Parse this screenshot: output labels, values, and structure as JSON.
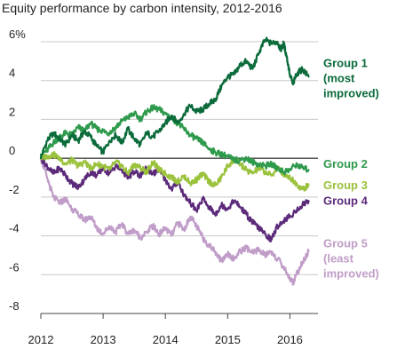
{
  "chart_data": {
    "type": "line",
    "title": "Equity performance by carbon intensity, 2012-2016",
    "xlabel": "",
    "ylabel": "",
    "x_ticks": [
      "2012",
      "2013",
      "2014",
      "2015",
      "2016"
    ],
    "y_ticks": [
      "6%",
      "4",
      "2",
      "0",
      "-2",
      "-4",
      "-6",
      "-8"
    ],
    "xlim": [
      2012,
      2016.45
    ],
    "ylim": [
      -8,
      6
    ],
    "grid": "horizontal",
    "zero_line": true,
    "legend": "inline labels at right end of each series",
    "series": [
      {
        "name": "Group 1 (most improved)",
        "label_lines": [
          "Group 1",
          "(most",
          "improved)"
        ],
        "color": "#0b6b3a",
        "x": [
          2012.0,
          2012.1,
          2012.2,
          2012.3,
          2012.4,
          2012.5,
          2012.6,
          2012.7,
          2012.8,
          2012.9,
          2013.0,
          2013.1,
          2013.2,
          2013.3,
          2013.4,
          2013.5,
          2013.6,
          2013.7,
          2013.8,
          2013.9,
          2014.0,
          2014.1,
          2014.2,
          2014.3,
          2014.4,
          2014.5,
          2014.6,
          2014.7,
          2014.8,
          2014.9,
          2015.0,
          2015.1,
          2015.2,
          2015.3,
          2015.4,
          2015.5,
          2015.6,
          2015.7,
          2015.8,
          2015.85,
          2015.9,
          2015.95,
          2016.0,
          2016.05,
          2016.1,
          2016.2,
          2016.3
        ],
        "y": [
          0.0,
          0.9,
          1.3,
          1.0,
          0.7,
          1.2,
          0.9,
          1.4,
          1.1,
          0.6,
          0.3,
          0.9,
          1.2,
          0.8,
          1.5,
          1.0,
          0.7,
          1.3,
          1.1,
          1.4,
          1.8,
          2.2,
          1.8,
          2.3,
          2.7,
          2.4,
          2.5,
          2.8,
          3.0,
          3.7,
          4.2,
          4.3,
          4.8,
          5.0,
          4.6,
          5.4,
          6.1,
          5.9,
          6.0,
          5.6,
          5.9,
          5.2,
          4.3,
          3.8,
          4.3,
          4.6,
          4.2
        ]
      },
      {
        "name": "Group 2",
        "label_lines": [
          "Group 2"
        ],
        "color": "#2e9a4c",
        "x": [
          2012.0,
          2012.1,
          2012.2,
          2012.3,
          2012.4,
          2012.5,
          2012.6,
          2012.7,
          2012.8,
          2012.9,
          2013.0,
          2013.1,
          2013.2,
          2013.3,
          2013.4,
          2013.5,
          2013.6,
          2013.7,
          2013.8,
          2013.9,
          2014.0,
          2014.1,
          2014.2,
          2014.3,
          2014.4,
          2014.5,
          2014.6,
          2014.7,
          2014.8,
          2014.9,
          2015.0,
          2015.1,
          2015.2,
          2015.3,
          2015.4,
          2015.5,
          2015.6,
          2015.7,
          2015.8,
          2015.9,
          2016.0,
          2016.1,
          2016.2,
          2016.3
        ],
        "y": [
          0.2,
          0.4,
          0.8,
          1.1,
          1.3,
          1.2,
          1.6,
          1.4,
          1.8,
          1.5,
          1.4,
          1.3,
          1.6,
          1.9,
          2.1,
          2.3,
          2.0,
          2.4,
          2.6,
          2.5,
          2.3,
          2.1,
          1.8,
          1.5,
          1.2,
          1.0,
          0.8,
          0.5,
          0.3,
          0.2,
          0.1,
          -0.1,
          -0.1,
          0.0,
          -0.2,
          -0.3,
          -0.4,
          -0.3,
          -0.5,
          -0.7,
          -0.6,
          -0.3,
          -0.5,
          -0.6
        ]
      },
      {
        "name": "Group 3",
        "label_lines": [
          "Group 3"
        ],
        "color": "#9bc23c",
        "x": [
          2012.0,
          2012.1,
          2012.2,
          2012.3,
          2012.4,
          2012.5,
          2012.6,
          2012.7,
          2012.8,
          2012.9,
          2013.0,
          2013.1,
          2013.2,
          2013.3,
          2013.4,
          2013.5,
          2013.6,
          2013.7,
          2013.8,
          2013.9,
          2014.0,
          2014.1,
          2014.2,
          2014.3,
          2014.4,
          2014.5,
          2014.6,
          2014.7,
          2014.8,
          2014.9,
          2015.0,
          2015.1,
          2015.2,
          2015.3,
          2015.4,
          2015.5,
          2015.6,
          2015.7,
          2015.8,
          2015.9,
          2016.0,
          2016.1,
          2016.2,
          2016.3
        ],
        "y": [
          0.0,
          0.1,
          0.2,
          0.0,
          -0.3,
          -0.1,
          -0.4,
          -0.2,
          -0.5,
          -0.3,
          -0.4,
          -0.6,
          -0.2,
          -0.4,
          -0.8,
          -0.3,
          -0.5,
          -0.7,
          -0.2,
          -0.6,
          -0.8,
          -1.0,
          -1.2,
          -0.9,
          -1.3,
          -1.1,
          -0.8,
          -1.2,
          -1.4,
          -1.0,
          -0.4,
          -0.1,
          -0.3,
          -0.6,
          -0.8,
          -0.5,
          -0.7,
          -0.9,
          -0.5,
          -0.8,
          -1.0,
          -1.3,
          -1.6,
          -1.4
        ]
      },
      {
        "name": "Group 4",
        "label_lines": [
          "Group 4"
        ],
        "color": "#5c2a7a",
        "x": [
          2012.0,
          2012.1,
          2012.2,
          2012.3,
          2012.4,
          2012.5,
          2012.6,
          2012.7,
          2012.8,
          2012.9,
          2013.0,
          2013.1,
          2013.2,
          2013.3,
          2013.4,
          2013.5,
          2013.6,
          2013.7,
          2013.8,
          2013.9,
          2014.0,
          2014.1,
          2014.2,
          2014.3,
          2014.4,
          2014.5,
          2014.6,
          2014.7,
          2014.8,
          2014.9,
          2015.0,
          2015.1,
          2015.2,
          2015.3,
          2015.4,
          2015.5,
          2015.6,
          2015.7,
          2015.8,
          2015.9,
          2016.0,
          2016.1,
          2016.2,
          2016.3
        ],
        "y": [
          0.0,
          -0.4,
          -0.8,
          -0.5,
          -0.9,
          -1.3,
          -1.5,
          -1.1,
          -0.7,
          -0.9,
          -0.5,
          -0.8,
          -0.4,
          -0.6,
          -1.0,
          -0.7,
          -0.9,
          -0.5,
          -0.8,
          -0.6,
          -1.1,
          -1.6,
          -1.2,
          -1.9,
          -2.3,
          -2.7,
          -2.1,
          -2.5,
          -2.9,
          -2.4,
          -2.6,
          -2.2,
          -2.5,
          -2.9,
          -3.3,
          -3.6,
          -3.9,
          -4.2,
          -3.5,
          -3.2,
          -3.0,
          -2.7,
          -2.4,
          -2.2
        ]
      },
      {
        "name": "Group 5 (least improved)",
        "label_lines": [
          "Group 5",
          "(least",
          "improved)"
        ],
        "color": "#c09dc8",
        "x": [
          2012.0,
          2012.1,
          2012.2,
          2012.3,
          2012.4,
          2012.5,
          2012.6,
          2012.7,
          2012.8,
          2012.9,
          2013.0,
          2013.1,
          2013.2,
          2013.3,
          2013.4,
          2013.5,
          2013.6,
          2013.7,
          2013.8,
          2013.9,
          2014.0,
          2014.1,
          2014.2,
          2014.3,
          2014.4,
          2014.5,
          2014.6,
          2014.7,
          2014.8,
          2014.9,
          2015.0,
          2015.1,
          2015.2,
          2015.3,
          2015.4,
          2015.5,
          2015.6,
          2015.7,
          2015.8,
          2015.9,
          2016.0,
          2016.05,
          2016.1,
          2016.2,
          2016.3
        ],
        "y": [
          0.0,
          -1.0,
          -2.0,
          -2.3,
          -2.1,
          -2.6,
          -2.9,
          -3.2,
          -3.0,
          -3.6,
          -3.9,
          -3.5,
          -3.8,
          -3.4,
          -3.9,
          -3.7,
          -4.1,
          -3.8,
          -3.5,
          -3.9,
          -3.6,
          -4.0,
          -3.3,
          -3.7,
          -3.0,
          -3.5,
          -4.1,
          -4.5,
          -4.8,
          -5.3,
          -4.9,
          -5.2,
          -4.8,
          -4.6,
          -4.9,
          -4.7,
          -5.0,
          -4.8,
          -5.2,
          -5.6,
          -6.2,
          -6.4,
          -6.0,
          -5.4,
          -4.8
        ]
      }
    ]
  }
}
